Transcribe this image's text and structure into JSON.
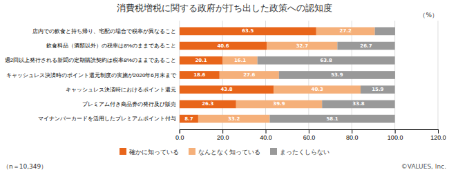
{
  "chart_data": {
    "type": "bar",
    "orientation": "horizontal",
    "stacked": true,
    "title": "消費税増税に関する政府が打ち出した政策への認知度",
    "categories": [
      "店内での飲食と持ち帰り、宅配の場合で税率が異なること",
      "飲食料品（酒類以外）の税率は8%のままであること",
      "週2回以上発行される新聞の定期購読契約は税率8%のままであること",
      "キャッシュレス決済時のポイント還元制度の実施が2020年6月末まで",
      "キャッシュレス決済時におけるポイント還元",
      "プレミアム付き商品券の発行及び販売",
      "マイナンバーカードを活用したプレミアムポイント付与"
    ],
    "series": [
      {
        "name": "確かに知っている",
        "color": "#E8651A",
        "values": [
          63.5,
          40.6,
          20.1,
          18.6,
          43.8,
          26.3,
          8.7
        ]
      },
      {
        "name": "なんとなく知っている",
        "color": "#F5B07A",
        "values": [
          27.2,
          32.7,
          16.1,
          27.6,
          40.3,
          39.9,
          33.2
        ]
      },
      {
        "name": "まったくしらない",
        "color": "#999999",
        "values": [
          9.4,
          26.7,
          63.8,
          53.9,
          15.9,
          33.8,
          58.1
        ],
        "value_labels": [
          null,
          "26.7",
          "63.8",
          "53.9",
          "15.9",
          "33.8",
          "58.1"
        ]
      }
    ],
    "xlim": [
      0,
      120
    ],
    "xticks": [
      {
        "value": 0,
        "label": "0.0"
      },
      {
        "value": 20,
        "label": "20.0"
      },
      {
        "value": 40,
        "label": "40.0"
      },
      {
        "value": 60,
        "label": "60.0"
      },
      {
        "value": 80,
        "label": "80.0"
      },
      {
        "value": 100,
        "label": "100.0"
      },
      {
        "value": 120,
        "label": "120.0"
      }
    ],
    "grid": true,
    "legend": "bottom",
    "data_labels": true,
    "annotations": [
      "（%）",
      "（n＝10,349）",
      "©VALUES, Inc."
    ]
  }
}
